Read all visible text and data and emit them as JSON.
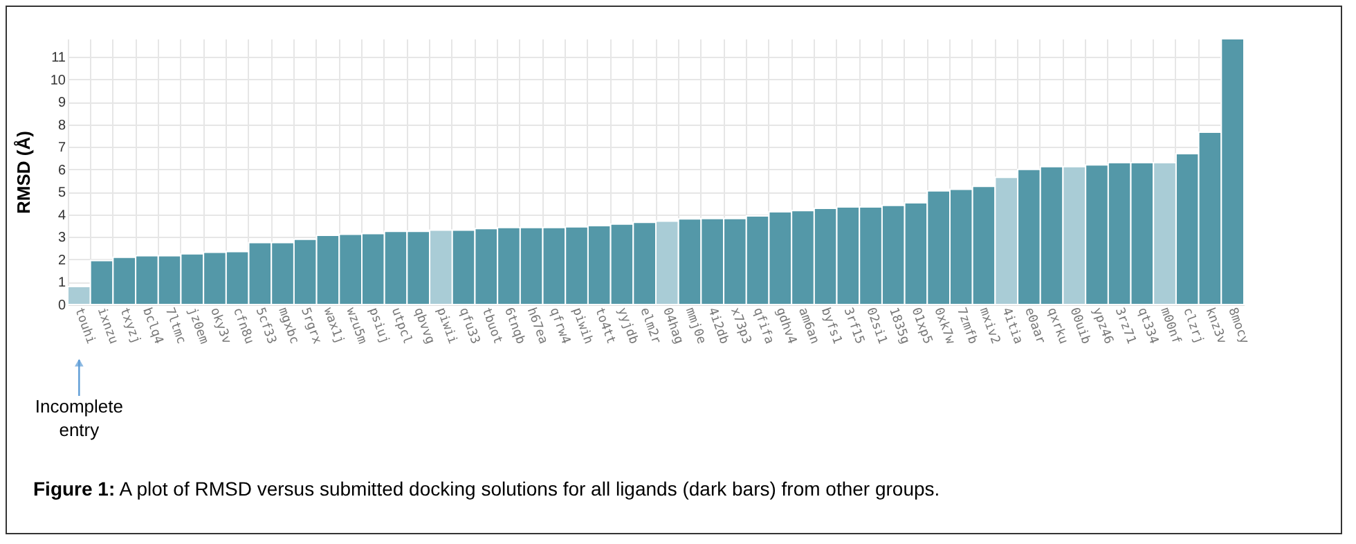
{
  "chart_data": {
    "type": "bar",
    "ylabel": "RMSD (Å)",
    "categories": [
      "touhi",
      "ixnzu",
      "txyzj",
      "bclq4",
      "7ltmc",
      "jz0em",
      "oky3v",
      "cfn8u",
      "5cf33",
      "mgxbc",
      "5rgrx",
      "wax1j",
      "wzu5m",
      "psiuj",
      "utpcl",
      "qbvvg",
      "piwii",
      "qfu33",
      "tbuot",
      "6tnqb",
      "h67ea",
      "qfrw4",
      "piwih",
      "to4tt",
      "yyjdb",
      "elm2r",
      "04hag",
      "mmj0e",
      "4i2db",
      "x73p3",
      "qfifa",
      "gdhv4",
      "am6an",
      "byfs1",
      "3rf15",
      "02si1",
      "1835g",
      "01xp5",
      "0xk7w",
      "7zmfb",
      "mxiv2",
      "4itia",
      "e0aar",
      "qxrku",
      "00uib",
      "ypz46",
      "3rz71",
      "qt334",
      "m00nf",
      "clzrj",
      "knz3v",
      "8mocy"
    ],
    "values": [
      0.8,
      1.95,
      2.1,
      2.17,
      2.17,
      2.25,
      2.32,
      2.35,
      2.75,
      2.75,
      2.9,
      3.07,
      3.12,
      3.15,
      3.25,
      3.25,
      3.3,
      3.3,
      3.37,
      3.42,
      3.42,
      3.42,
      3.45,
      3.5,
      3.57,
      3.65,
      3.7,
      3.8,
      3.82,
      3.82,
      3.93,
      4.12,
      4.17,
      4.27,
      4.33,
      4.33,
      4.4,
      4.52,
      5.05,
      5.12,
      5.25,
      5.65,
      6.0,
      6.12,
      6.12,
      6.2,
      6.3,
      6.3,
      6.3,
      6.7,
      7.65,
      11.8
    ],
    "colors": [
      "#a9ccd6",
      "#5498a8",
      "#5498a8",
      "#5498a8",
      "#5498a8",
      "#5498a8",
      "#5498a8",
      "#5498a8",
      "#5498a8",
      "#5498a8",
      "#5498a8",
      "#5498a8",
      "#5498a8",
      "#5498a8",
      "#5498a8",
      "#5498a8",
      "#a9ccd6",
      "#5498a8",
      "#5498a8",
      "#5498a8",
      "#5498a8",
      "#5498a8",
      "#5498a8",
      "#5498a8",
      "#5498a8",
      "#5498a8",
      "#a9ccd6",
      "#5498a8",
      "#5498a8",
      "#5498a8",
      "#5498a8",
      "#5498a8",
      "#5498a8",
      "#5498a8",
      "#5498a8",
      "#5498a8",
      "#5498a8",
      "#5498a8",
      "#5498a8",
      "#5498a8",
      "#5498a8",
      "#a9ccd6",
      "#5498a8",
      "#5498a8",
      "#a9ccd6",
      "#5498a8",
      "#5498a8",
      "#5498a8",
      "#a9ccd6",
      "#5498a8",
      "#5498a8",
      "#5498a8"
    ],
    "ylim": [
      0,
      11.8
    ],
    "yticks": [
      0,
      1,
      2,
      3,
      4,
      5,
      6,
      7,
      8,
      9,
      10,
      11
    ],
    "grid": true,
    "annotations": [
      {
        "text": "Incomplete entry",
        "x": "touhi"
      },
      "Figure 1: A plot of RMSD versus submitted docking solutions for all ligands (dark bars) from other groups."
    ]
  }
}
